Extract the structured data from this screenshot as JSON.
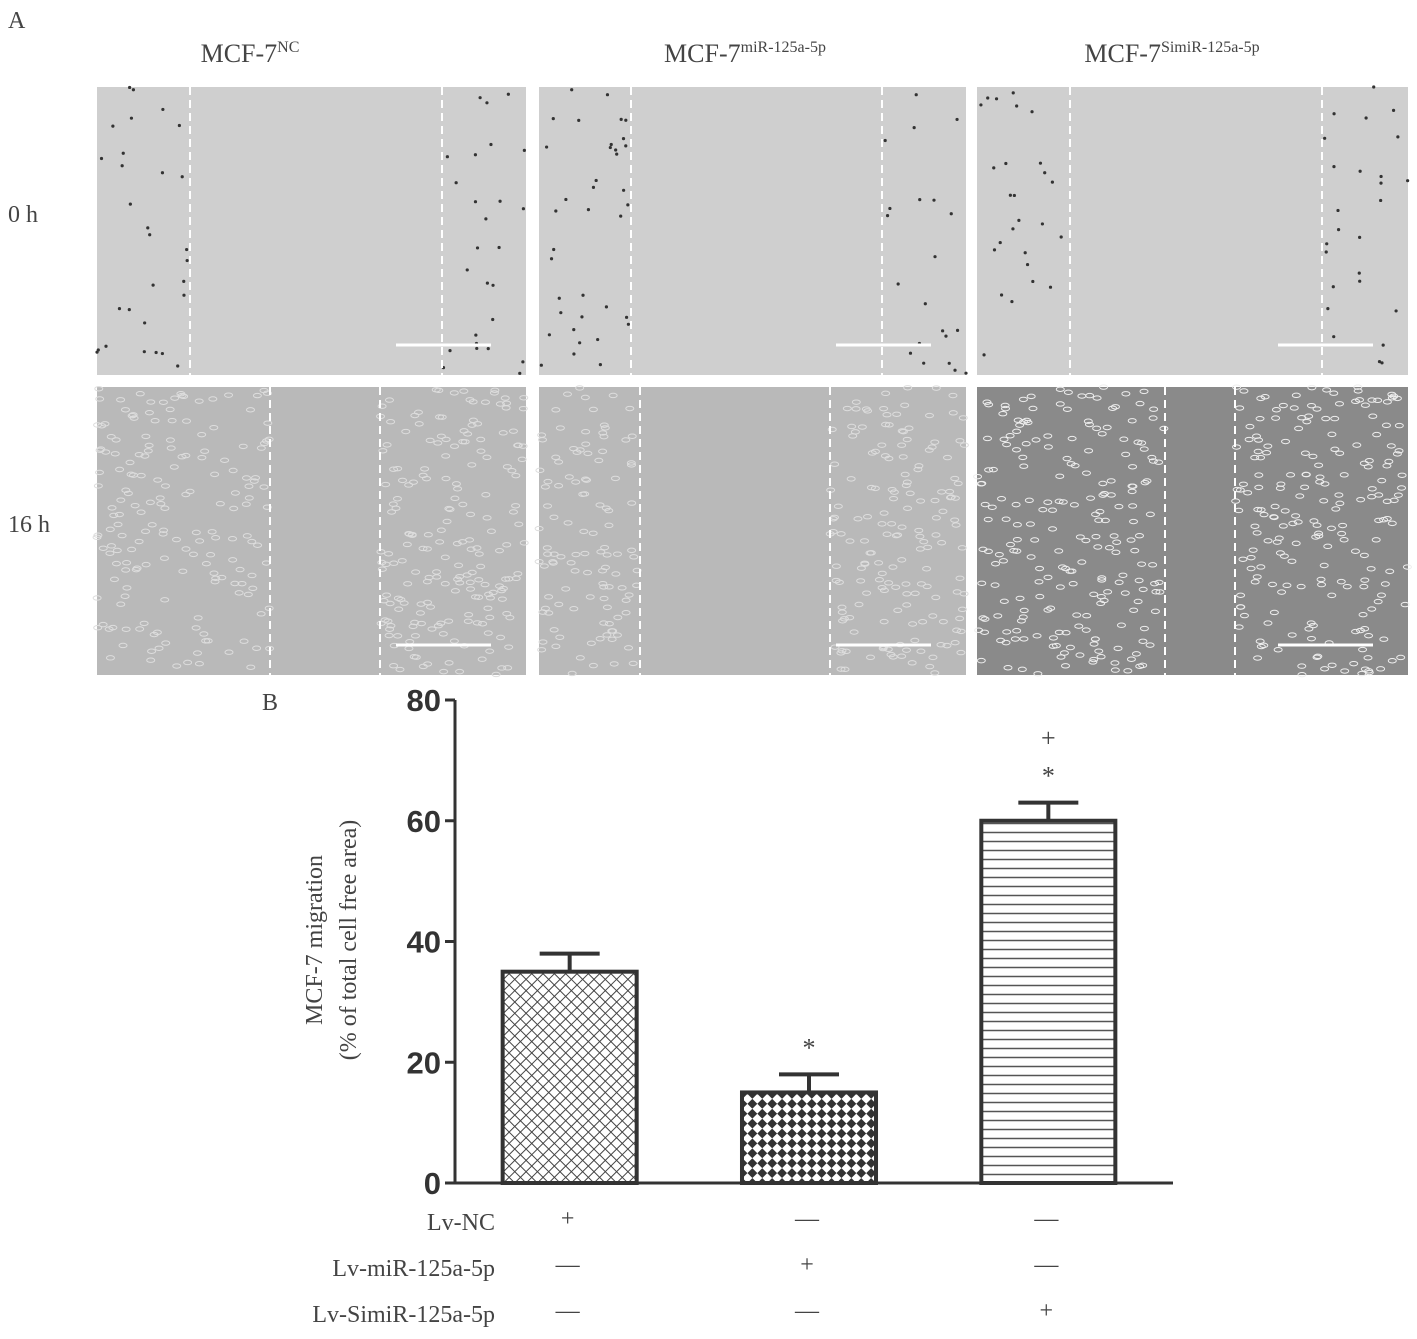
{
  "panel_a": {
    "label": "A",
    "columns": [
      {
        "base": "MCF-7",
        "sup": "NC"
      },
      {
        "base": "MCF-7",
        "sup": "miR-125a-5p"
      },
      {
        "base": "MCF-7",
        "sup": "SimiR-125a-5p"
      }
    ],
    "rows": [
      "0 h",
      "16 h"
    ]
  },
  "chart_data": {
    "type": "bar",
    "panel_label": "B",
    "ylabel": [
      "MCF-7 migration",
      "(% of total cell free area)"
    ],
    "values": [
      35,
      15,
      60
    ],
    "errors": [
      3,
      3,
      3
    ],
    "patterns": [
      "crosshatch",
      "checker",
      "horizontal"
    ],
    "color": "#333333",
    "annotations": [
      null,
      [
        "*"
      ],
      [
        "+",
        "*"
      ]
    ],
    "ylim": [
      0,
      80
    ],
    "yticks": [
      0,
      20,
      40,
      60,
      80
    ],
    "treatments": [
      {
        "name": "Lv-NC",
        "marks": [
          "+",
          "—",
          "—"
        ]
      },
      {
        "name": "Lv-miR-125a-5p",
        "marks": [
          "—",
          "+",
          "—"
        ]
      },
      {
        "name": "Lv-SimiR-125a-5p",
        "marks": [
          "—",
          "—",
          "+"
        ]
      }
    ]
  }
}
